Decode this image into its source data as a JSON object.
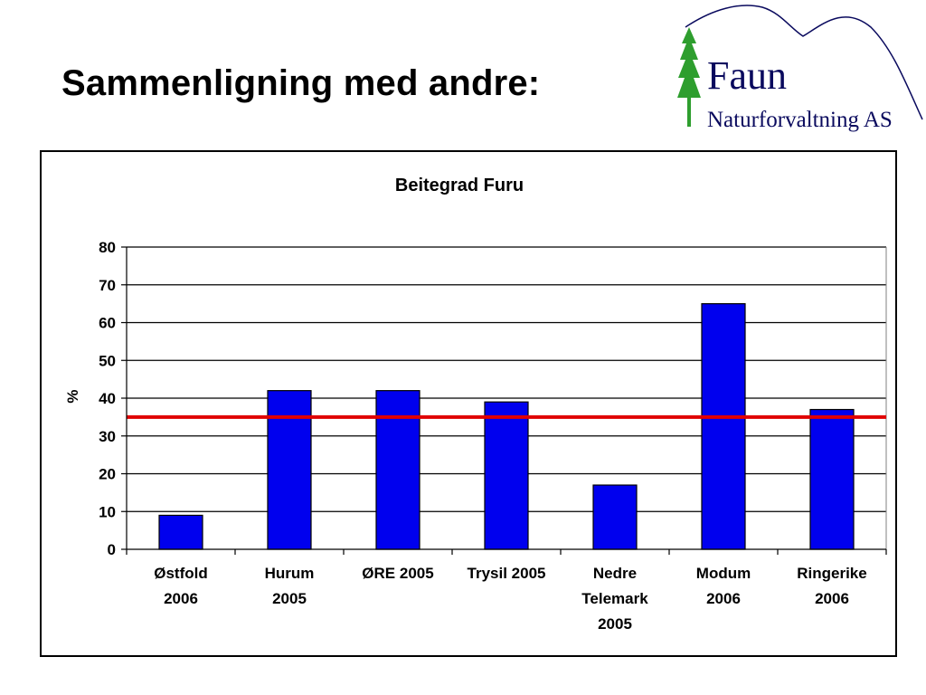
{
  "slide": {
    "title": "Sammenligning med andre:"
  },
  "logo": {
    "name": "Faun",
    "subtitle": "Naturforvaltning AS",
    "brand_color": "#0a0a5e",
    "tree_color": "#2e9e2e"
  },
  "chart_data": {
    "type": "bar",
    "title": "Beitegrad Furu",
    "xlabel": "",
    "ylabel": "%",
    "ylim": [
      0,
      80
    ],
    "yticks": [
      0,
      10,
      20,
      30,
      40,
      50,
      60,
      70,
      80
    ],
    "categories": [
      [
        "Østfold",
        "2006"
      ],
      [
        "Hurum",
        "2005"
      ],
      [
        "ØRE 2005"
      ],
      [
        "Trysil 2005"
      ],
      [
        "Nedre",
        "Telemark",
        "2005"
      ],
      [
        "Modum",
        "2006"
      ],
      [
        "Ringerike",
        "2006"
      ]
    ],
    "values": [
      9,
      42,
      42,
      39,
      17,
      65,
      37
    ],
    "reference_line": {
      "value": 35,
      "color": "#e00000"
    },
    "bar_color": "#0000ee",
    "grid": true
  }
}
